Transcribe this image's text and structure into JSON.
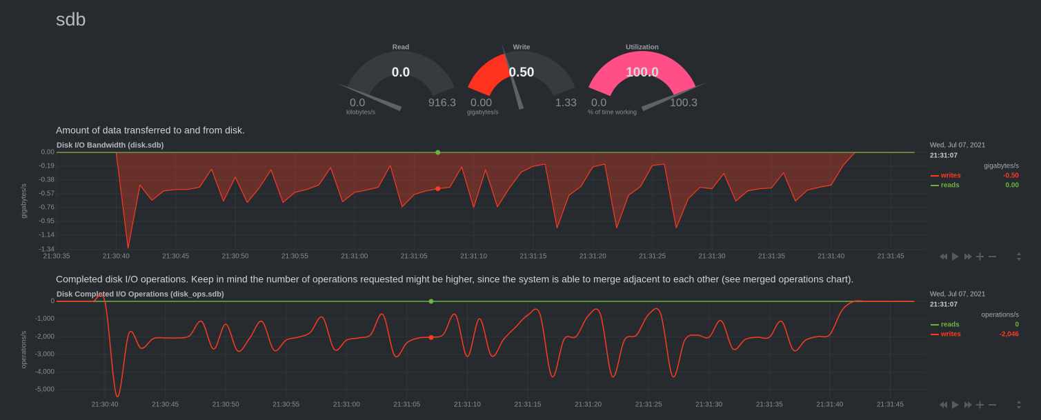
{
  "page_title": "sdb",
  "gauges": [
    {
      "title": "Read",
      "value": 0,
      "value_label": "0.0",
      "min": {
        "value": 0,
        "label": "0.0"
      },
      "max": 916.3,
      "units": "kilobytes/s",
      "color": "#ff2a1a"
    },
    {
      "title": "Write",
      "value": 0.5,
      "value_label": "0.50",
      "min": {
        "value": 0,
        "label": "0.00"
      },
      "max": 1.33,
      "units": "gigabytes/s",
      "color": "#ff3220"
    },
    {
      "title": "Utilization",
      "value": 100,
      "value_label": "100.0",
      "min": {
        "value": 0,
        "label": "0.0"
      },
      "max": 100.3,
      "units": "% of time working",
      "color": "#ff4f86"
    }
  ],
  "chart_data": [
    {
      "type": "area",
      "description": "Amount of data transferred to and from disk.",
      "title": "Disk I/O Bandwidth (disk.sdb)",
      "y_label": "gigabytes/s",
      "selected_date": "Wed, Jul 07, 2021",
      "selected_x": "21:31:07",
      "units": "gigabytes/s",
      "xlim": [
        "21:30:35",
        "21:31:48"
      ],
      "xticks": [
        "21:30:35",
        "21:30:40",
        "21:30:45",
        "21:30:50",
        "21:30:55",
        "21:31:00",
        "21:31:05",
        "21:31:10",
        "21:31:15",
        "21:31:20",
        "21:31:25",
        "21:31:30",
        "21:31:35",
        "21:31:40",
        "21:31:45"
      ],
      "ylim": [
        -1.34,
        0
      ],
      "yticks": [
        {
          "value": 0,
          "label": "0.00"
        },
        -0.19,
        -0.38,
        -0.57,
        -0.76,
        -0.95,
        -1.14,
        -1.34
      ],
      "grid": true,
      "x": [
        "21:30:35",
        "21:30:36",
        "21:30:37",
        "21:30:38",
        "21:30:39",
        "21:30:40",
        "21:30:41",
        "21:30:42",
        "21:30:43",
        "21:30:44",
        "21:30:45",
        "21:30:46",
        "21:30:47",
        "21:30:48",
        "21:30:49",
        "21:30:50",
        "21:30:51",
        "21:30:52",
        "21:30:53",
        "21:30:54",
        "21:30:55",
        "21:30:56",
        "21:30:57",
        "21:30:58",
        "21:30:59",
        "21:31:00",
        "21:31:01",
        "21:31:02",
        "21:31:03",
        "21:31:04",
        "21:31:05",
        "21:31:06",
        "21:31:07",
        "21:31:08",
        "21:31:09",
        "21:31:10",
        "21:31:11",
        "21:31:12",
        "21:31:13",
        "21:31:14",
        "21:31:15",
        "21:31:16",
        "21:31:17",
        "21:31:18",
        "21:31:19",
        "21:31:20",
        "21:31:21",
        "21:31:22",
        "21:31:23",
        "21:31:24",
        "21:31:25",
        "21:31:26",
        "21:31:27",
        "21:31:28",
        "21:31:29",
        "21:31:30",
        "21:31:31",
        "21:31:32",
        "21:31:33",
        "21:31:34",
        "21:31:35",
        "21:31:36",
        "21:31:37",
        "21:31:38",
        "21:31:39",
        "21:31:40",
        "21:31:41",
        "21:31:42",
        "21:31:43",
        "21:31:44",
        "21:31:45",
        "21:31:46",
        "21:31:47"
      ],
      "series": [
        {
          "name": "writes",
          "color": "#fe3a20",
          "selected_value": -0.5,
          "selected_label": "-0.50",
          "values": [
            0,
            0,
            0,
            0,
            0,
            0,
            -1.32,
            -0.45,
            -0.66,
            -0.53,
            -0.51,
            -0.51,
            -0.48,
            -0.23,
            -0.67,
            -0.34,
            -0.69,
            -0.49,
            -0.24,
            -0.69,
            -0.55,
            -0.51,
            -0.45,
            -0.21,
            -0.68,
            -0.55,
            -0.52,
            -0.48,
            -0.18,
            -0.75,
            -0.58,
            -0.53,
            -0.5,
            -0.48,
            -0.2,
            -0.76,
            -0.24,
            -0.75,
            -0.49,
            -0.27,
            -0.19,
            -0.16,
            -1.04,
            -0.59,
            -0.47,
            -0.2,
            -0.16,
            -1.04,
            -0.59,
            -0.47,
            -0.18,
            -0.16,
            -1.04,
            -0.64,
            -0.48,
            -0.5,
            -0.29,
            -0.67,
            -0.53,
            -0.5,
            -0.49,
            -0.28,
            -0.67,
            -0.52,
            -0.48,
            -0.45,
            -0.18,
            0,
            0,
            0,
            0,
            0,
            0
          ]
        },
        {
          "name": "reads",
          "color": "#6db33f",
          "selected_value": 0,
          "selected_label": "0.00",
          "values": [
            0,
            0,
            0,
            0,
            0,
            0,
            0,
            0,
            0,
            0,
            0,
            0,
            0,
            0,
            0,
            0,
            0,
            0,
            0,
            0,
            0,
            0,
            0,
            0,
            0,
            0,
            0,
            0,
            0,
            0,
            0,
            0,
            0,
            0,
            0,
            0,
            0,
            0,
            0,
            0,
            0,
            0,
            0,
            0,
            0,
            0,
            0,
            0,
            0,
            0,
            0,
            0,
            0,
            0,
            0,
            0,
            0,
            0,
            0,
            0,
            0,
            0,
            0,
            0,
            0,
            0,
            0,
            0,
            0,
            0,
            0,
            0,
            0
          ]
        }
      ]
    },
    {
      "type": "line",
      "description": "Completed disk I/O operations. Keep in mind the number of operations requested might be higher, since the system is able to merge adjacent to each other (see merged operations chart).",
      "title": "Disk Completed I/O Operations (disk_ops.sdb)",
      "y_label": "operations/s",
      "selected_date": "Wed, Jul 07, 2021",
      "selected_x": "21:31:07",
      "units": "operations/s",
      "xlim": [
        "21:30:36",
        "21:31:48"
      ],
      "xticks": [
        "21:30:40",
        "21:30:45",
        "21:30:50",
        "21:30:55",
        "21:31:00",
        "21:31:05",
        "21:31:10",
        "21:31:15",
        "21:31:20",
        "21:31:25",
        "21:31:30",
        "21:31:35",
        "21:31:40",
        "21:31:45"
      ],
      "ylim": [
        -5470,
        0
      ],
      "yticks": [
        0,
        {
          "value": -1000,
          "label": "-1,000"
        },
        {
          "value": -2000,
          "label": "-2,000"
        },
        {
          "value": -3000,
          "label": "-3,000"
        },
        {
          "value": -4000,
          "label": "-4,000"
        },
        {
          "value": -5000,
          "label": "-5,000"
        }
      ],
      "grid": true,
      "x": [
        "21:30:36",
        "21:30:37",
        "21:30:38",
        "21:30:39",
        "21:30:40",
        "21:30:41",
        "21:30:42",
        "21:30:43",
        "21:30:44",
        "21:30:45",
        "21:30:46",
        "21:30:47",
        "21:30:48",
        "21:30:49",
        "21:30:50",
        "21:30:51",
        "21:30:52",
        "21:30:53",
        "21:30:54",
        "21:30:55",
        "21:30:56",
        "21:30:57",
        "21:30:58",
        "21:30:59",
        "21:31:00",
        "21:31:01",
        "21:31:02",
        "21:31:03",
        "21:31:04",
        "21:31:05",
        "21:31:06",
        "21:31:07",
        "21:31:08",
        "21:31:09",
        "21:31:10",
        "21:31:11",
        "21:31:12",
        "21:31:13",
        "21:31:14",
        "21:31:15",
        "21:31:16",
        "21:31:17",
        "21:31:18",
        "21:31:19",
        "21:31:20",
        "21:31:21",
        "21:31:22",
        "21:31:23",
        "21:31:24",
        "21:31:25",
        "21:31:26",
        "21:31:27",
        "21:31:28",
        "21:31:29",
        "21:31:30",
        "21:31:31",
        "21:31:32",
        "21:31:33",
        "21:31:34",
        "21:31:35",
        "21:31:36",
        "21:31:37",
        "21:31:38",
        "21:31:39",
        "21:31:40",
        "21:31:41",
        "21:31:42",
        "21:31:43",
        "21:31:44",
        "21:31:45",
        "21:31:46",
        "21:31:47"
      ],
      "series": [
        {
          "name": "reads",
          "color": "#6db33f",
          "selected_value": 0,
          "selected_label": "0",
          "values": [
            0,
            0,
            0,
            0,
            0,
            0,
            0,
            0,
            0,
            0,
            0,
            0,
            0,
            0,
            0,
            0,
            0,
            0,
            0,
            0,
            0,
            0,
            0,
            0,
            0,
            0,
            0,
            0,
            0,
            0,
            0,
            0,
            0,
            0,
            0,
            0,
            0,
            0,
            0,
            0,
            0,
            0,
            0,
            0,
            0,
            0,
            0,
            0,
            0,
            0,
            0,
            0,
            0,
            0,
            0,
            0,
            0,
            0,
            0,
            0,
            0,
            0,
            0,
            0,
            0,
            0,
            0,
            0,
            0,
            0,
            0,
            0
          ]
        },
        {
          "name": "writes",
          "color": "#fe3a20",
          "selected_value": -2046,
          "selected_label": "-2,046",
          "values": [
            0,
            0,
            0,
            0,
            0,
            -5390,
            -1800,
            -2660,
            -2110,
            -2070,
            -2070,
            -1950,
            -1130,
            -2700,
            -1290,
            -2810,
            -2070,
            -1130,
            -2770,
            -2190,
            -2030,
            -1760,
            -900,
            -2730,
            -2190,
            -2070,
            -1880,
            -740,
            -3090,
            -2340,
            -2070,
            -2030,
            -1880,
            -740,
            -3130,
            -980,
            -3090,
            -2150,
            -1450,
            -780,
            -700,
            -4260,
            -2150,
            -1990,
            -820,
            -700,
            -4260,
            -2190,
            -1910,
            -740,
            -700,
            -4260,
            -2190,
            -1910,
            -2030,
            -1090,
            -2700,
            -2150,
            -2030,
            -2030,
            -1130,
            -2770,
            -2190,
            -1990,
            -1880,
            -510,
            0,
            0,
            0,
            0,
            0,
            0
          ]
        }
      ]
    }
  ]
}
